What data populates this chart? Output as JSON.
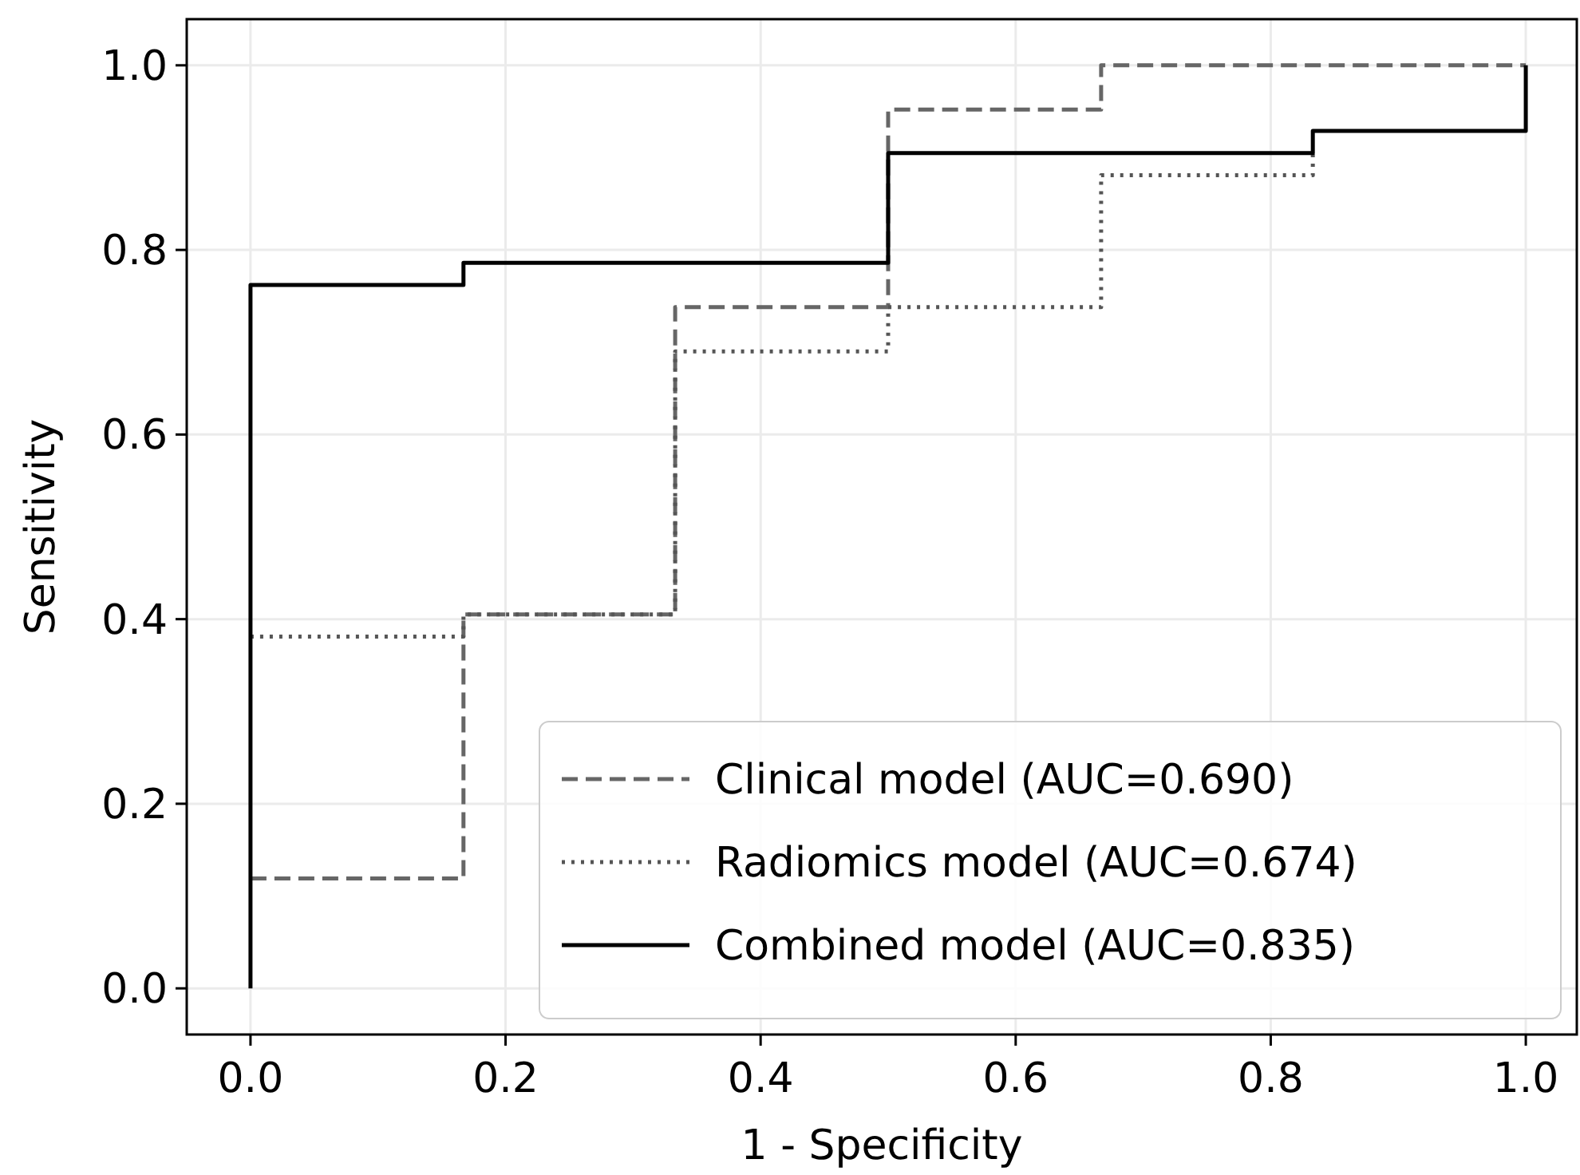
{
  "chart_data": {
    "type": "line",
    "xlabel": "1 - Specificity",
    "ylabel": "Sensitivity",
    "xlim": [
      -0.05,
      1.04
    ],
    "ylim": [
      -0.05,
      1.05
    ],
    "xticks": [
      {
        "value": 0,
        "label": "0.0"
      },
      {
        "value": 0.2,
        "label": "0.2"
      },
      {
        "value": 0.4,
        "label": "0.4"
      },
      {
        "value": 0.6,
        "label": "0.6"
      },
      {
        "value": 0.8,
        "label": "0.8"
      },
      {
        "value": 1,
        "label": "1.0"
      }
    ],
    "yticks": [
      {
        "value": 0,
        "label": "0.0"
      },
      {
        "value": 0.2,
        "label": "0.2"
      },
      {
        "value": 0.4,
        "label": "0.4"
      },
      {
        "value": 0.6,
        "label": "0.6"
      },
      {
        "value": 0.8,
        "label": "0.8"
      },
      {
        "value": 1,
        "label": "1.0"
      }
    ],
    "grid": true,
    "legend": "bottom right",
    "series": [
      {
        "name": "Clinical model (AUC=0.690)",
        "color": "#666666",
        "line_style": "dashed",
        "x": [
          0,
          0.167,
          0.167,
          0.333,
          0.333,
          0.5,
          0.5,
          0.667,
          0.667,
          1
        ],
        "values": [
          0.119,
          0.119,
          0.405,
          0.405,
          0.738,
          0.738,
          0.952,
          0.952,
          1,
          1
        ]
      },
      {
        "name": "Radiomics model (AUC=0.674)",
        "color": "#555555",
        "line_style": "dotted",
        "x": [
          0,
          0.167,
          0.167,
          0.333,
          0.333,
          0.5,
          0.5,
          0.667,
          0.667,
          0.833,
          0.833
        ],
        "values": [
          0.381,
          0.381,
          0.405,
          0.405,
          0.69,
          0.69,
          0.738,
          0.738,
          0.881,
          0.881,
          0.905
        ]
      },
      {
        "name": "Combined model (AUC=0.835)",
        "color": "#000000",
        "line_style": "solid",
        "x": [
          0,
          0,
          0.167,
          0.167,
          0.5,
          0.5,
          0.833,
          0.833,
          1,
          1
        ],
        "values": [
          0,
          0.762,
          0.762,
          0.786,
          0.786,
          0.905,
          0.905,
          0.929,
          0.929,
          1
        ]
      }
    ]
  }
}
